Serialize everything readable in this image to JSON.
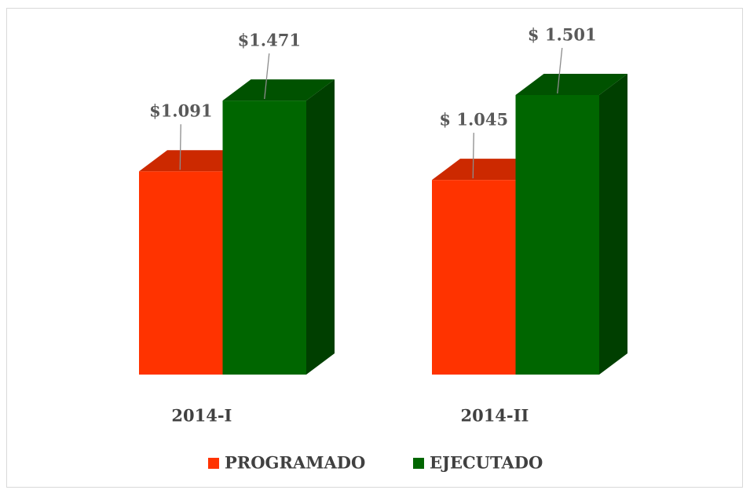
{
  "chart_data": {
    "type": "bar3d",
    "categories": [
      "2014-I",
      "2014-II"
    ],
    "series": [
      {
        "name": "PROGRAMADO",
        "color": "#ff3300",
        "values": [
          1091,
          1045
        ],
        "value_labels": [
          "$1.091",
          "$ 1.045"
        ]
      },
      {
        "name": "EJECUTADO",
        "color": "#006600",
        "values": [
          1471,
          1501
        ],
        "value_labels": [
          "$1.471",
          "$ 1.501"
        ]
      }
    ],
    "legend": "bottom"
  }
}
